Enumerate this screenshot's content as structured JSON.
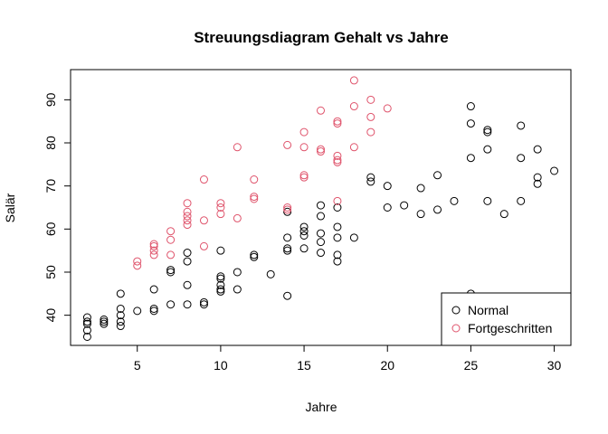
{
  "chart_data": {
    "type": "scatter",
    "title": "Streuungsdiagram Gehalt vs Jahre",
    "xlabel": "Jahre",
    "ylabel": "Salär",
    "xlim": [
      1,
      31
    ],
    "ylim": [
      33,
      97
    ],
    "xticks": [
      5,
      10,
      15,
      20,
      25,
      30
    ],
    "yticks": [
      40,
      50,
      60,
      70,
      80,
      90
    ],
    "grid": false,
    "legend_position": "bottom-right",
    "series": [
      {
        "name": "Normal",
        "color": "#000000",
        "points": [
          [
            2,
            35
          ],
          [
            2,
            36.5
          ],
          [
            2,
            38
          ],
          [
            2,
            38.5
          ],
          [
            2,
            39.5
          ],
          [
            3,
            38
          ],
          [
            3,
            38.5
          ],
          [
            3,
            39
          ],
          [
            4,
            37.5
          ],
          [
            4,
            38.5
          ],
          [
            4,
            40
          ],
          [
            4,
            41.5
          ],
          [
            4,
            45
          ],
          [
            5,
            41
          ],
          [
            6,
            41
          ],
          [
            6,
            41.5
          ],
          [
            6,
            46
          ],
          [
            7,
            42.5
          ],
          [
            7,
            50
          ],
          [
            7,
            50.5
          ],
          [
            8,
            42.5
          ],
          [
            8,
            47
          ],
          [
            8,
            52.5
          ],
          [
            8,
            54.5
          ],
          [
            9,
            42.5
          ],
          [
            9,
            43
          ],
          [
            10,
            45.5
          ],
          [
            10,
            46
          ],
          [
            10,
            47
          ],
          [
            10,
            48.5
          ],
          [
            10,
            49
          ],
          [
            10,
            55
          ],
          [
            11,
            46
          ],
          [
            11,
            50
          ],
          [
            12,
            53.5
          ],
          [
            12,
            54
          ],
          [
            13,
            49.5
          ],
          [
            14,
            44.5
          ],
          [
            14,
            55
          ],
          [
            14,
            55.5
          ],
          [
            14,
            58
          ],
          [
            14,
            64
          ],
          [
            15,
            55.5
          ],
          [
            15,
            58.5
          ],
          [
            15,
            59.5
          ],
          [
            15,
            60.5
          ],
          [
            16,
            54.5
          ],
          [
            16,
            57
          ],
          [
            16,
            59
          ],
          [
            16,
            63
          ],
          [
            16,
            65.5
          ],
          [
            17,
            52.5
          ],
          [
            17,
            54
          ],
          [
            17,
            58
          ],
          [
            17,
            60.5
          ],
          [
            17,
            65
          ],
          [
            18,
            58
          ],
          [
            19,
            71
          ],
          [
            19,
            72
          ],
          [
            20,
            65
          ],
          [
            20,
            70
          ],
          [
            21,
            65.5
          ],
          [
            22,
            63.5
          ],
          [
            22,
            69.5
          ],
          [
            23,
            64.5
          ],
          [
            23,
            72.5
          ],
          [
            24,
            66.5
          ],
          [
            25,
            45
          ],
          [
            25,
            76.5
          ],
          [
            25,
            84.5
          ],
          [
            25,
            88.5
          ],
          [
            26,
            66.5
          ],
          [
            26,
            78.5
          ],
          [
            26,
            82.5
          ],
          [
            26,
            83
          ],
          [
            27,
            63.5
          ],
          [
            28,
            66.5
          ],
          [
            28,
            76.5
          ],
          [
            28,
            84
          ],
          [
            29,
            70.5
          ],
          [
            29,
            72
          ],
          [
            29,
            78.5
          ],
          [
            30,
            73.5
          ]
        ]
      },
      {
        "name": "Fortgeschritten",
        "color": "#DF536B",
        "points": [
          [
            5,
            51.5
          ],
          [
            5,
            52.5
          ],
          [
            6,
            54
          ],
          [
            6,
            55
          ],
          [
            6,
            56
          ],
          [
            6,
            56.5
          ],
          [
            7,
            54
          ],
          [
            7,
            57.5
          ],
          [
            7,
            59.5
          ],
          [
            8,
            61
          ],
          [
            8,
            62
          ],
          [
            8,
            63
          ],
          [
            8,
            64
          ],
          [
            8,
            66
          ],
          [
            9,
            56
          ],
          [
            9,
            62
          ],
          [
            9,
            71.5
          ],
          [
            10,
            63.5
          ],
          [
            10,
            65
          ],
          [
            10,
            66
          ],
          [
            11,
            62.5
          ],
          [
            11,
            79
          ],
          [
            12,
            67
          ],
          [
            12,
            67.5
          ],
          [
            12,
            71.5
          ],
          [
            14,
            64.5
          ],
          [
            14,
            65
          ],
          [
            14,
            79.5
          ],
          [
            15,
            72
          ],
          [
            15,
            72.5
          ],
          [
            15,
            79
          ],
          [
            15,
            82.5
          ],
          [
            16,
            78
          ],
          [
            16,
            78.5
          ],
          [
            16,
            87.5
          ],
          [
            17,
            66.5
          ],
          [
            17,
            75.5
          ],
          [
            17,
            76
          ],
          [
            17,
            77
          ],
          [
            17,
            84.5
          ],
          [
            17,
            85
          ],
          [
            18,
            79
          ],
          [
            18,
            88.5
          ],
          [
            18,
            94.5
          ],
          [
            19,
            82.5
          ],
          [
            19,
            86
          ],
          [
            19,
            90
          ],
          [
            20,
            88
          ]
        ]
      }
    ]
  }
}
